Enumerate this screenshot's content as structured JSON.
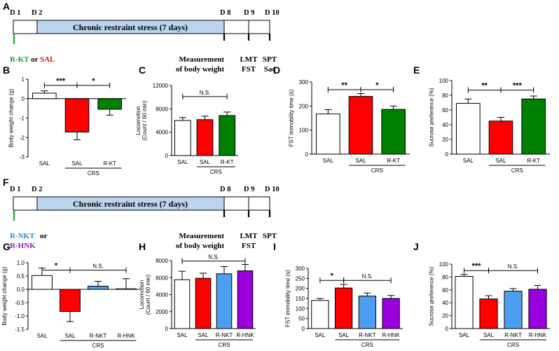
{
  "colors": {
    "saline": "#ffffff",
    "crs_saline": "#ff0000",
    "r_kt": "#008000",
    "r_nkt": "#4b9ef0",
    "r_hnk": "#9900dd",
    "timeline_fill": "#bcd5ec",
    "label_green": "#1f9c3b",
    "label_red": "#e8141c",
    "label_blue": "#2c8ed6",
    "label_purple": "#8b22c4"
  },
  "timelines": [
    {
      "panel": "A",
      "days": [
        "D 1",
        "D 2",
        "D 8",
        "D 9",
        "D 10"
      ],
      "bar_label": "Chronic restraint stress (7 days)",
      "treat_a": "R-KT",
      "treat_or": "or",
      "treat_b": "SAL",
      "event_d8": [
        "Measurement",
        "of body weight"
      ],
      "event_d9": [
        "LMT",
        "FST"
      ],
      "event_d10": [
        "SPT",
        "Sac"
      ]
    },
    {
      "panel": "F",
      "days": [
        "D 1",
        "D 2",
        "D 8",
        "D 9",
        "D 10"
      ],
      "bar_label": "Chronic restraint stress (7 days)",
      "treat_a": "R-NKT",
      "treat_or": "or",
      "treat_b": "R-HNK",
      "event_d8": [
        "Measurement",
        "of body weight"
      ],
      "event_d9": [
        "LMT",
        "FST"
      ],
      "event_d10": [
        "SPT"
      ]
    }
  ],
  "group_label": "CRS",
  "chart_data": [
    {
      "panel": "B",
      "type": "bar",
      "ylabel": "Body weight change (g)",
      "ylim": [
        -3,
        1
      ],
      "yticks": [
        -3,
        -2,
        -1,
        0,
        1
      ],
      "ytick_labels": [
        "-3",
        "-2",
        "-1",
        "0",
        "1"
      ],
      "categories": [
        "SAL",
        "SAL",
        "R-KT"
      ],
      "values": [
        0.28,
        -1.72,
        -0.55
      ],
      "errors": [
        0.12,
        0.4,
        0.3
      ],
      "colors": [
        "#ffffff",
        "#ff0000",
        "#008000"
      ],
      "sig": [
        {
          "from": 0,
          "to": 1,
          "label": "***",
          "y": 0.68
        },
        {
          "from": 1,
          "to": 2,
          "label": "*",
          "y": 0.68
        }
      ]
    },
    {
      "panel": "C",
      "type": "bar",
      "ylabel": "Locomotion\n(Count / 60 min)",
      "ylim": [
        0,
        12000
      ],
      "yticks": [
        0,
        4000,
        8000,
        12000
      ],
      "ytick_labels": [
        "0",
        "4000",
        "8000",
        "12000"
      ],
      "categories": [
        "SAL",
        "SAL",
        "R-KT"
      ],
      "values": [
        6000,
        6150,
        6850
      ],
      "errors": [
        500,
        600,
        600
      ],
      "colors": [
        "#ffffff",
        "#ff0000",
        "#008000"
      ],
      "sig": [
        {
          "from": 0,
          "to": 2,
          "label": "N.S.",
          "y": 10100
        }
      ]
    },
    {
      "panel": "D",
      "type": "bar",
      "ylabel": "FST immobility time (s)",
      "ylim": [
        0,
        300
      ],
      "yticks": [
        0,
        100,
        200,
        300
      ],
      "ytick_labels": [
        "0",
        "100",
        "200",
        "300"
      ],
      "categories": [
        "SAL",
        "SAL",
        "R-KT"
      ],
      "values": [
        167,
        240,
        186
      ],
      "errors": [
        18,
        12,
        14
      ],
      "colors": [
        "#ffffff",
        "#ff0000",
        "#008000"
      ],
      "sig": [
        {
          "from": 0,
          "to": 1,
          "label": "**",
          "y": 268
        },
        {
          "from": 1,
          "to": 2,
          "label": "*",
          "y": 268
        }
      ]
    },
    {
      "panel": "E",
      "type": "bar",
      "ylabel": "Sucrose preference (%)",
      "ylim": [
        0,
        100
      ],
      "yticks": [
        0,
        20,
        40,
        60,
        80,
        100
      ],
      "ytick_labels": [
        "0",
        "20",
        "40",
        "60",
        "80",
        "100"
      ],
      "categories": [
        "SAL",
        "SAL",
        "R-KT"
      ],
      "values": [
        69,
        45,
        75
      ],
      "errors": [
        6,
        5,
        4
      ],
      "colors": [
        "#ffffff",
        "#ff0000",
        "#008000"
      ],
      "sig": [
        {
          "from": 0,
          "to": 1,
          "label": "**",
          "y": 87
        },
        {
          "from": 1,
          "to": 2,
          "label": "***",
          "y": 87
        }
      ]
    },
    {
      "panel": "G",
      "type": "bar",
      "ylabel": "Body weight change (g)",
      "ylim": [
        -1.5,
        1.0
      ],
      "yticks": [
        -1.5,
        -1.0,
        -0.5,
        0.0,
        0.5,
        1.0
      ],
      "ytick_labels": [
        "-1.5",
        "-1.0",
        "-0.5",
        "0.0",
        "0.5",
        "1.0"
      ],
      "categories": [
        "SAL",
        "SAL",
        "R-NKT",
        "R-HNK"
      ],
      "values": [
        0.52,
        -0.83,
        0.12,
        0.02
      ],
      "errors": [
        0.28,
        0.38,
        0.18,
        0.38
      ],
      "colors": [
        "#ffffff",
        "#ff0000",
        "#4b9ef0",
        "#9900dd"
      ],
      "sig": [
        {
          "from": 0,
          "to": 1,
          "label": "*",
          "y": 0.72
        },
        {
          "from": 1,
          "to": 3,
          "label": "N.S.",
          "y": 0.72
        }
      ]
    },
    {
      "panel": "H",
      "type": "bar",
      "ylabel": "Locomotion\n(Count / 60 min)",
      "ylim": [
        0,
        8000
      ],
      "yticks": [
        0,
        2000,
        4000,
        6000,
        8000
      ],
      "ytick_labels": [
        "0",
        "2000",
        "4000",
        "6000",
        "8000"
      ],
      "categories": [
        "SAL",
        "SAL",
        "R-NKT",
        "R-HNK"
      ],
      "values": [
        5750,
        5920,
        6450,
        6800
      ],
      "errors": [
        1000,
        600,
        850,
        750
      ],
      "colors": [
        "#ffffff",
        "#ff0000",
        "#4b9ef0",
        "#9900dd"
      ],
      "sig": [
        {
          "from": 0,
          "to": 3,
          "label": "N.S.",
          "y": 7950
        }
      ]
    },
    {
      "panel": "I",
      "type": "bar",
      "ylabel": "FST immobility time (s)",
      "ylim": [
        0,
        300
      ],
      "yticks": [
        0,
        50,
        100,
        150,
        200,
        250,
        300
      ],
      "ytick_labels": [
        "0",
        "50",
        "100",
        "150",
        "200",
        "250",
        "300"
      ],
      "categories": [
        "SAL",
        "SAL",
        "R-NKT",
        "R-HNK"
      ],
      "values": [
        140,
        202,
        162,
        150
      ],
      "errors": [
        10,
        18,
        15,
        15
      ],
      "colors": [
        "#ffffff",
        "#ff0000",
        "#4b9ef0",
        "#9900dd"
      ],
      "sig": [
        {
          "from": 0,
          "to": 1,
          "label": "*",
          "y": 240
        },
        {
          "from": 1,
          "to": 3,
          "label": "N.S.",
          "y": 240
        }
      ]
    },
    {
      "panel": "J",
      "type": "bar",
      "ylabel": "Sucrose preference (%)",
      "ylim": [
        0,
        100
      ],
      "yticks": [
        0,
        20,
        40,
        60,
        80,
        100
      ],
      "ytick_labels": [
        "0",
        "20",
        "40",
        "60",
        "80",
        "100"
      ],
      "categories": [
        "SAL",
        "SAL",
        "R-NKT",
        "R-HNK"
      ],
      "values": [
        81,
        46,
        58,
        61
      ],
      "errors": [
        3,
        5,
        4,
        6
      ],
      "colors": [
        "#ffffff",
        "#ff0000",
        "#4b9ef0",
        "#9900dd"
      ],
      "sig": [
        {
          "from": 0,
          "to": 1,
          "label": "***",
          "y": 90
        },
        {
          "from": 1,
          "to": 3,
          "label": "N.S.",
          "y": 90
        }
      ]
    }
  ]
}
